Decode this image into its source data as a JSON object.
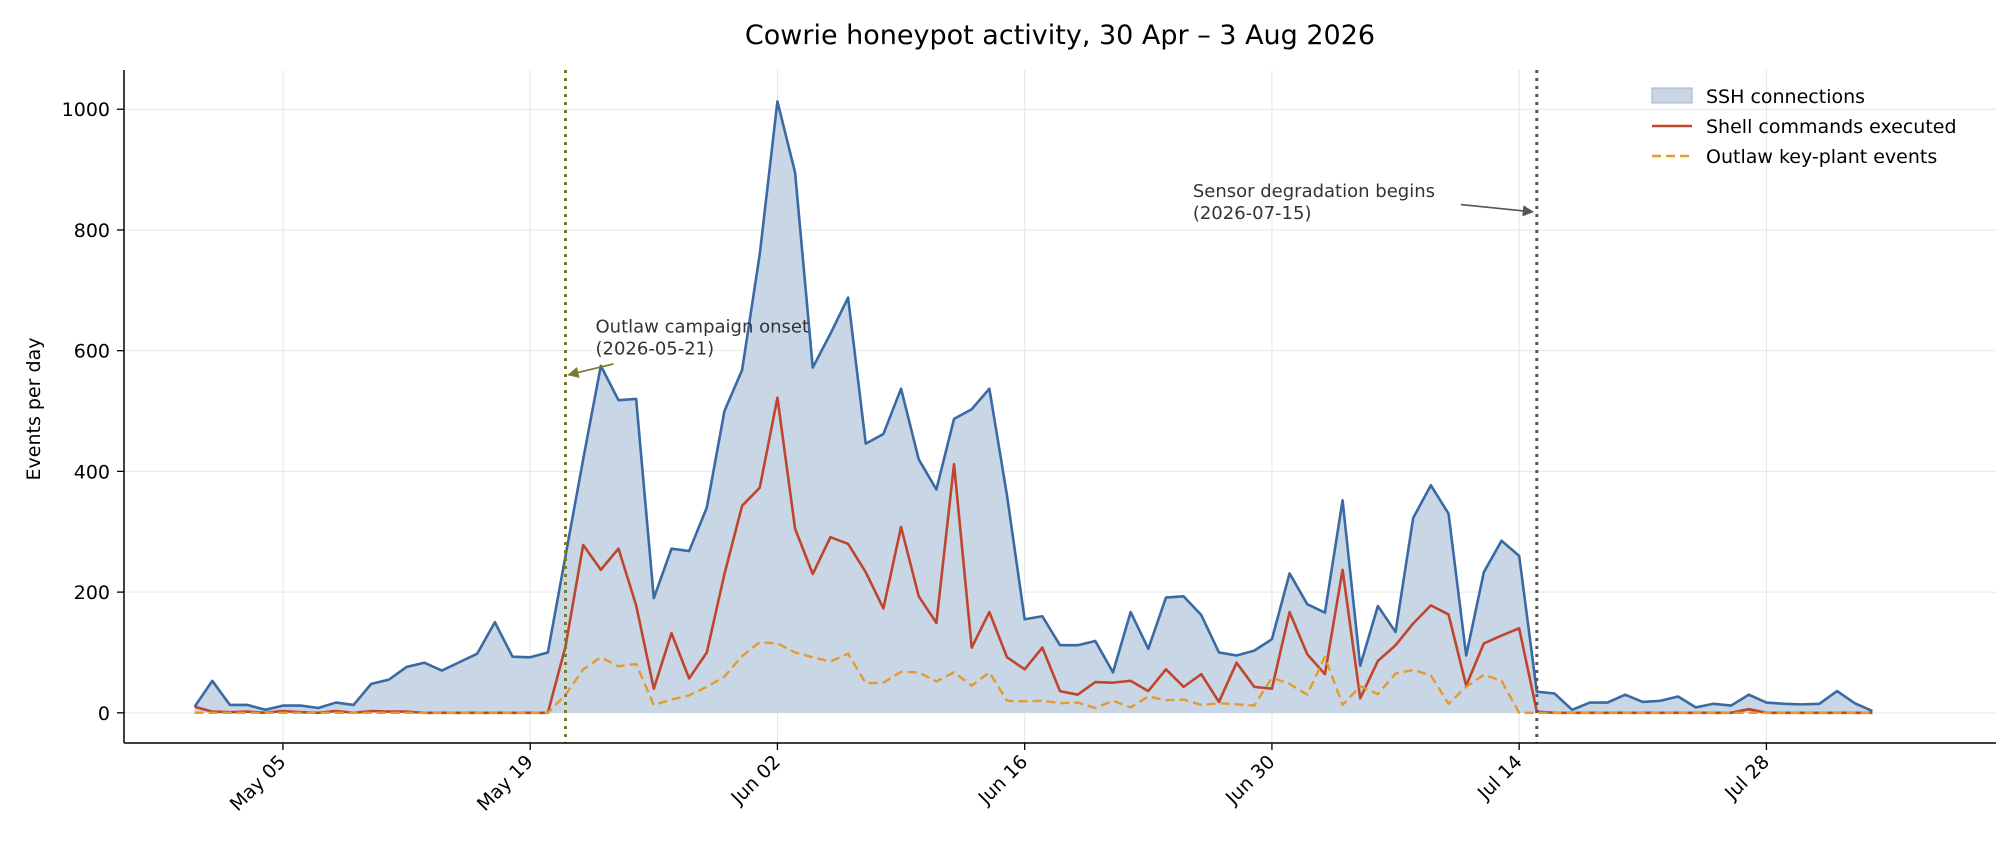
{
  "chart_data": {
    "type": "line",
    "title": "Cowrie honeypot activity, 30 Apr – 3 Aug 2026",
    "xlabel": "",
    "ylabel": "Events per day",
    "x_start": "2026-04-30",
    "x_end": "2026-08-03",
    "xlim": [
      "2026-04-26",
      "2026-08-10"
    ],
    "ylim": [
      -50,
      1065
    ],
    "x_ticks": [
      {
        "date": "2026-05-05",
        "label": "May 05"
      },
      {
        "date": "2026-05-19",
        "label": "May 19"
      },
      {
        "date": "2026-06-02",
        "label": "Jun 02"
      },
      {
        "date": "2026-06-16",
        "label": "Jun 16"
      },
      {
        "date": "2026-06-30",
        "label": "Jun 30"
      },
      {
        "date": "2026-07-14",
        "label": "Jul 14"
      },
      {
        "date": "2026-07-28",
        "label": "Jul 28"
      }
    ],
    "y_ticks": [
      0,
      200,
      400,
      600,
      800,
      1000
    ],
    "grid": true,
    "legend_position": "top-right",
    "series": [
      {
        "name": "SSH connections",
        "style": "area",
        "color": "#3a6aa3",
        "fill": "#c8d6e6",
        "values": [
          10,
          53,
          13,
          13,
          5,
          12,
          12,
          8,
          17,
          13,
          48,
          55,
          76,
          83,
          70,
          84,
          98,
          150,
          93,
          92,
          100,
          260,
          420,
          575,
          518,
          520,
          190,
          272,
          268,
          340,
          500,
          568,
          760,
          1013,
          895,
          572,
          628,
          688,
          446,
          462,
          537,
          420,
          370,
          487,
          503,
          537,
          360,
          155,
          160,
          112,
          112,
          119,
          67,
          167,
          106,
          191,
          193,
          162,
          100,
          95,
          103,
          122,
          231,
          180,
          166,
          352,
          78,
          177,
          134,
          323,
          377,
          330,
          95,
          233,
          285,
          260,
          35,
          32,
          5,
          17,
          17,
          30,
          18,
          20,
          27,
          9,
          15,
          12,
          30,
          17,
          15,
          14,
          15,
          36,
          16,
          3
        ]
      },
      {
        "name": "Shell commands executed",
        "style": "line",
        "color": "#c0452d",
        "values": [
          10,
          2,
          1,
          2,
          0,
          3,
          1,
          0,
          3,
          0,
          3,
          2,
          2,
          0,
          0,
          0,
          0,
          0,
          0,
          0,
          0,
          110,
          278,
          237,
          272,
          178,
          40,
          132,
          57,
          100,
          230,
          343,
          373,
          522,
          305,
          230,
          291,
          280,
          233,
          173,
          308,
          193,
          149,
          412,
          108,
          167,
          92,
          72,
          108,
          36,
          30,
          51,
          50,
          53,
          36,
          72,
          43,
          64,
          18,
          83,
          43,
          40,
          167,
          97,
          64,
          237,
          24,
          86,
          112,
          148,
          178,
          163,
          45,
          115,
          128,
          140,
          2,
          0,
          0,
          0,
          0,
          0,
          0,
          0,
          0,
          0,
          0,
          0,
          6,
          0,
          0,
          0,
          0,
          0,
          0,
          0
        ]
      },
      {
        "name": "Outlaw key-plant events",
        "style": "dashed",
        "color": "#e39b2d",
        "values": [
          0,
          0,
          0,
          0,
          0,
          0,
          0,
          0,
          0,
          0,
          0,
          0,
          0,
          0,
          0,
          0,
          0,
          0,
          0,
          0,
          0,
          30,
          72,
          92,
          77,
          81,
          13,
          22,
          29,
          43,
          60,
          94,
          117,
          115,
          100,
          92,
          85,
          98,
          49,
          50,
          68,
          67,
          52,
          67,
          45,
          67,
          20,
          19,
          20,
          16,
          17,
          8,
          20,
          9,
          27,
          21,
          22,
          13,
          16,
          14,
          12,
          58,
          48,
          30,
          93,
          13,
          44,
          31,
          65,
          71,
          62,
          15,
          43,
          63,
          53,
          0,
          0,
          0,
          0,
          0,
          0,
          0,
          0,
          0,
          0,
          0,
          0,
          0,
          0,
          0,
          0,
          0,
          0,
          0,
          0,
          0
        ]
      }
    ],
    "annotations": [
      {
        "label_line1": "Outlaw campaign onset",
        "label_line2": "(2026-05-21)",
        "date": "2026-05-21",
        "color": "#7a7a2a",
        "arrow_to_y": 560
      },
      {
        "label_line1": "Sensor degradation begins",
        "label_line2": "(2026-07-15)",
        "date": "2026-07-15",
        "color": "#555555",
        "arrow_to_y": 830
      }
    ]
  }
}
